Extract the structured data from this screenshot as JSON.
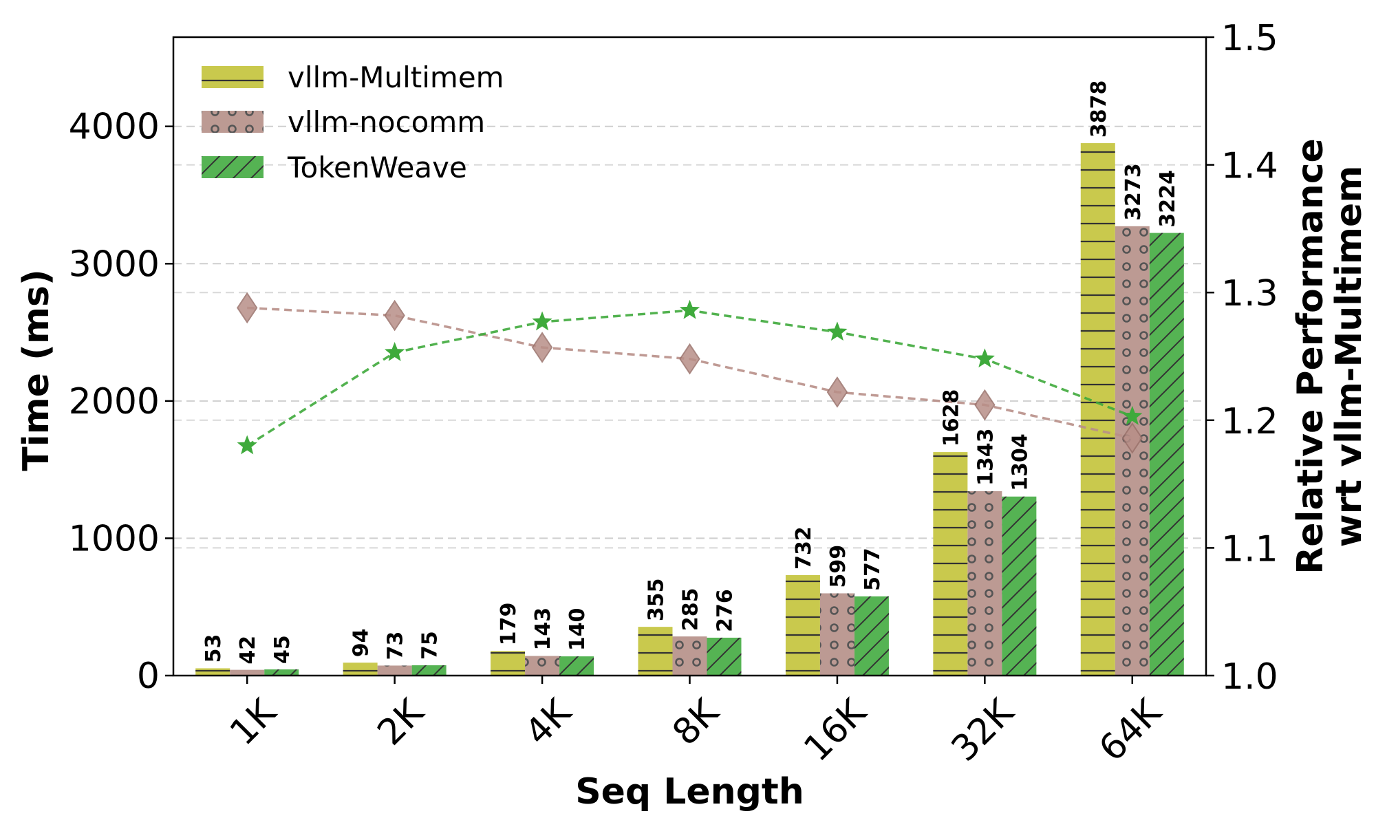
{
  "chart_data": {
    "type": "bar",
    "categories": [
      "1K",
      "2K",
      "4K",
      "8K",
      "16K",
      "32K",
      "64K"
    ],
    "xlabel": "Seq Length",
    "ylabel": "Time (ms)",
    "y2label_line1": "Relative Performance",
    "y2label_line2": "wrt vllm-Multimem",
    "ylim": [
      0,
      4650
    ],
    "yticks": [
      0,
      1000,
      2000,
      3000,
      4000
    ],
    "y2lim": [
      1.0,
      1.5
    ],
    "y2ticks": [
      1.0,
      1.1,
      1.2,
      1.3,
      1.4,
      1.5
    ],
    "y2tick_labels": [
      "1.0",
      "1.1",
      "1.2",
      "1.3",
      "1.4",
      "1.5"
    ],
    "grid": "horizontal dashed",
    "legend_position": "top-left",
    "series": [
      {
        "name": "vllm-Multimem",
        "color": "#c9c94d",
        "pattern": "horizontal-lines",
        "values": [
          53,
          94,
          179,
          355,
          732,
          1628,
          3878
        ]
      },
      {
        "name": "vllm-nocomm",
        "color": "#bc9a93",
        "pattern": "dots",
        "values": [
          42,
          73,
          143,
          285,
          599,
          1343,
          3273
        ]
      },
      {
        "name": "TokenWeave",
        "color": "#55b353",
        "pattern": "diagonal-lines",
        "values": [
          45,
          75,
          140,
          276,
          577,
          1304,
          3224
        ]
      }
    ],
    "lines": [
      {
        "series": "vllm-nocomm",
        "axis": "right",
        "marker": "diamond",
        "color": "#b88f88",
        "values": [
          1.288,
          1.282,
          1.257,
          1.248,
          1.222,
          1.212,
          1.186
        ]
      },
      {
        "series": "TokenWeave",
        "axis": "right",
        "marker": "star",
        "color": "#3faa3c",
        "values": [
          1.18,
          1.253,
          1.277,
          1.286,
          1.269,
          1.248,
          1.203
        ]
      }
    ]
  }
}
